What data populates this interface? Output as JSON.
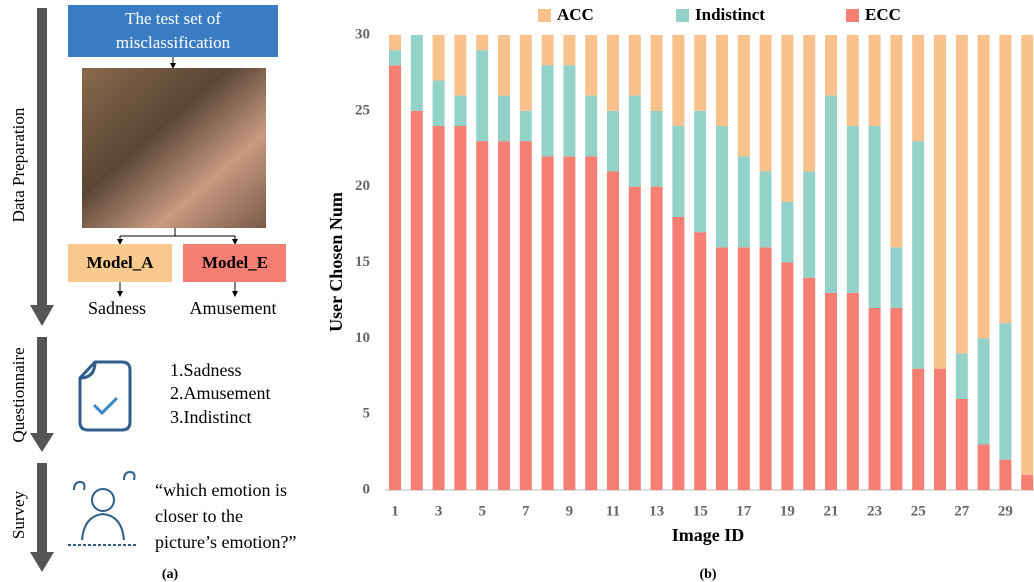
{
  "diagram": {
    "stages": [
      "Data Preparation",
      "Questionnaire",
      "Survey"
    ],
    "source_box": [
      "The test set of",
      "misclassification"
    ],
    "models": [
      "Model_A",
      "Model_E"
    ],
    "predictions": [
      "Sadness",
      "Amusement"
    ],
    "options": [
      "1.Sadness",
      "2.Amusement",
      "3.Indistinct"
    ],
    "question": [
      "“which emotion is",
      "closer to the",
      "picture’s emotion?”"
    ],
    "caption": "(a)"
  },
  "chart_data": {
    "type": "stacked_bar",
    "caption": "(b)",
    "x_label": "Image ID",
    "y_label": "User Chosen Num",
    "categories": [
      "1",
      null,
      "3",
      null,
      "5",
      null,
      "7",
      null,
      "9",
      null,
      "11",
      null,
      "13",
      null,
      "15",
      null,
      "17",
      null,
      "19",
      null,
      "21",
      null,
      "23",
      null,
      "25",
      null,
      "27",
      null,
      "29",
      null
    ],
    "series": [
      {
        "name": "ACC",
        "color": "#f9c18b",
        "values": [
          1,
          0,
          3,
          4,
          1,
          4,
          5,
          2,
          2,
          4,
          5,
          4,
          5,
          6,
          5,
          6,
          8,
          9,
          11,
          9,
          4,
          6,
          6,
          14,
          7,
          22,
          21,
          20,
          19,
          29
        ]
      },
      {
        "name": "Indistinct",
        "color": "#93d2c9",
        "values": [
          1,
          5,
          3,
          2,
          6,
          3,
          2,
          6,
          6,
          4,
          4,
          6,
          5,
          6,
          8,
          8,
          6,
          5,
          4,
          7,
          13,
          11,
          12,
          4,
          15,
          0,
          3,
          7,
          9,
          0
        ]
      },
      {
        "name": "ECC",
        "color": "#f47f72",
        "values": [
          28,
          25,
          24,
          24,
          23,
          23,
          23,
          22,
          22,
          22,
          21,
          20,
          20,
          18,
          17,
          16,
          16,
          16,
          15,
          14,
          13,
          13,
          12,
          12,
          8,
          8,
          6,
          3,
          2,
          1
        ]
      }
    ],
    "ylim": [
      0,
      30
    ],
    "yticks": [
      0,
      5,
      10,
      15,
      20,
      25,
      30
    ],
    "grid": false,
    "legend": "top"
  }
}
